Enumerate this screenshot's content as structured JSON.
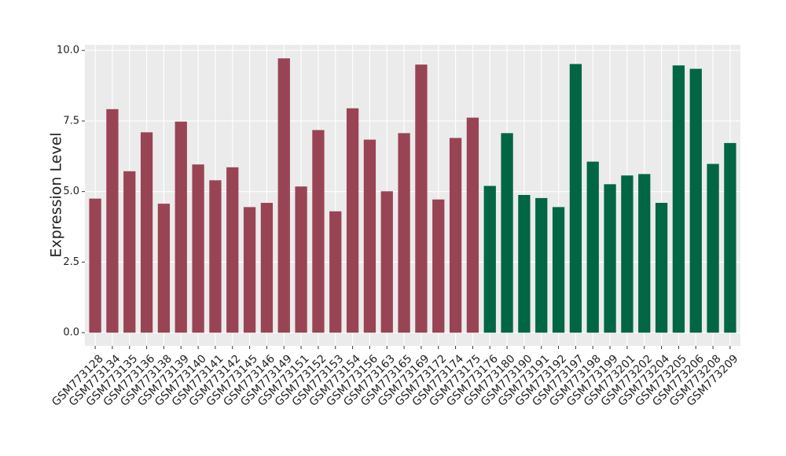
{
  "chart_data": {
    "type": "bar",
    "y_label": "Expression Level",
    "categories": [
      "GSM773128",
      "GSM773134",
      "GSM773135",
      "GSM773136",
      "GSM773138",
      "GSM773139",
      "GSM773140",
      "GSM773141",
      "GSM773142",
      "GSM773145",
      "GSM773146",
      "GSM773149",
      "GSM773151",
      "GSM773152",
      "GSM773153",
      "GSM773154",
      "GSM773156",
      "GSM773163",
      "GSM773165",
      "GSM773169",
      "GSM773172",
      "GSM773174",
      "GSM773175",
      "GSM773176",
      "GSM773180",
      "GSM773190",
      "GSM773191",
      "GSM773192",
      "GSM773197",
      "GSM773198",
      "GSM773199",
      "GSM773201",
      "GSM773202",
      "GSM773204",
      "GSM773205",
      "GSM773206",
      "GSM773208",
      "GSM773209"
    ],
    "values": [
      4.75,
      7.92,
      5.72,
      7.1,
      4.57,
      7.48,
      5.96,
      5.4,
      5.86,
      4.45,
      4.6,
      9.72,
      5.18,
      7.18,
      4.3,
      7.95,
      6.84,
      5.01,
      7.07,
      9.5,
      4.72,
      6.9,
      7.62,
      5.2,
      7.07,
      4.88,
      4.77,
      4.45,
      9.52,
      6.06,
      5.26,
      5.57,
      5.62,
      4.6,
      9.47,
      9.35,
      5.98,
      6.72
    ],
    "colors": [
      "#994455",
      "#994455",
      "#994455",
      "#994455",
      "#994455",
      "#994455",
      "#994455",
      "#994455",
      "#994455",
      "#994455",
      "#994455",
      "#994455",
      "#994455",
      "#994455",
      "#994455",
      "#994455",
      "#994455",
      "#994455",
      "#994455",
      "#994455",
      "#994455",
      "#994455",
      "#994455",
      "#006644",
      "#006644",
      "#006644",
      "#006644",
      "#006644",
      "#006644",
      "#006644",
      "#006644",
      "#006644",
      "#006644",
      "#006644",
      "#006644",
      "#006644",
      "#006644",
      "#006644"
    ],
    "ylim": [
      -0.47,
      10.2
    ],
    "yticks": [
      {
        "value": 0,
        "label": "0.0"
      },
      {
        "value": 2.5,
        "label": "2.5"
      },
      {
        "value": 5,
        "label": "5.0"
      },
      {
        "value": 7.5,
        "label": "7.5"
      },
      {
        "value": 10,
        "label": "10.0"
      }
    ],
    "grid": true
  }
}
